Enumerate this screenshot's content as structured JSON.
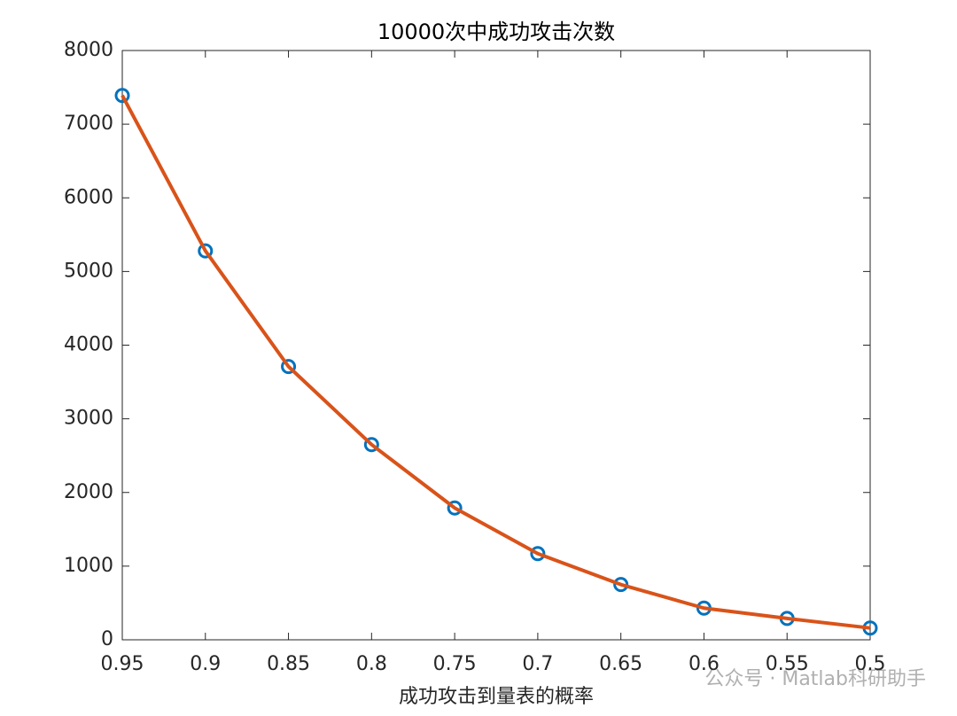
{
  "chart_data": {
    "type": "line",
    "title": "10000次中成功攻击次数",
    "x_label": "成功攻击到量表的概率",
    "watermark": "公众号 · Matlab科研助手",
    "x": [
      0.95,
      0.9,
      0.85,
      0.8,
      0.75,
      0.7,
      0.65,
      0.6,
      0.55,
      0.5
    ],
    "series": [
      {
        "color": "#0072BD",
        "marker": "circle",
        "values": [
          7390,
          5280,
          3710,
          2650,
          1790,
          1170,
          750,
          430,
          290,
          160
        ]
      },
      {
        "color": "#D95319",
        "marker": "none",
        "values": [
          7390,
          5280,
          3710,
          2650,
          1790,
          1170,
          750,
          430,
          290,
          160
        ]
      }
    ],
    "xlim": [
      0.95,
      0.5
    ],
    "xticks": [
      0.95,
      0.9,
      0.85,
      0.8,
      0.75,
      0.7,
      0.65,
      0.6,
      0.55,
      0.5
    ],
    "ylim": [
      0,
      8000
    ],
    "yticks": [
      0,
      1000,
      2000,
      3000,
      4000,
      5000,
      6000,
      7000,
      8000
    ],
    "grid": false
  }
}
